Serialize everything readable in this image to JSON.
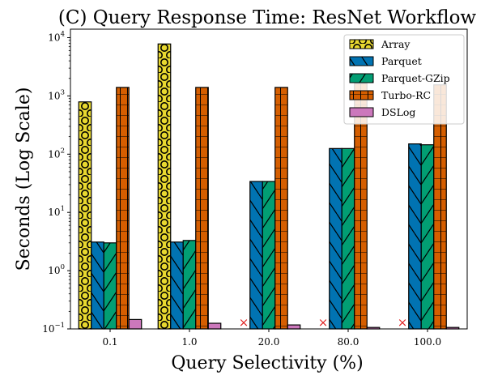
{
  "chart_data": {
    "type": "bar",
    "title": "(C) Query Response Time: ResNet Workflow",
    "xlabel": "Query Selectivity (%)",
    "ylabel": "Seconds (Log Scale)",
    "yscale": "log",
    "ylim": [
      0.1,
      14000
    ],
    "ytick_labels": [
      {
        "base": "10",
        "exp": "−1",
        "value": 0.1
      },
      {
        "base": "10",
        "exp": "0",
        "value": 1
      },
      {
        "base": "10",
        "exp": "1",
        "value": 10
      },
      {
        "base": "10",
        "exp": "2",
        "value": 100
      },
      {
        "base": "10",
        "exp": "3",
        "value": 1000
      },
      {
        "base": "10",
        "exp": "4",
        "value": 10000
      }
    ],
    "categories": [
      "0.1",
      "1.0",
      "20.0",
      "80.0",
      "100.0"
    ],
    "legend_position": "top-right",
    "missing_marker": "×",
    "series": [
      {
        "name": "Array",
        "color": "#e8d830",
        "hatch": "circles",
        "values": [
          790,
          7800,
          null,
          null,
          null
        ]
      },
      {
        "name": "Parquet",
        "color": "#0173b2",
        "hatch": "backslash",
        "values": [
          3.1,
          3.1,
          34,
          125,
          150
        ]
      },
      {
        "name": "Parquet-GZip",
        "color": "#029e73",
        "hatch": "slash",
        "values": [
          3.0,
          3.3,
          34,
          125,
          145
        ]
      },
      {
        "name": "Turbo-RC",
        "color": "#d55e00",
        "hatch": "grid",
        "values": [
          1400,
          1400,
          1400,
          1650,
          1550
        ]
      },
      {
        "name": "DSLog",
        "color": "#cc78bc",
        "hatch": "none",
        "values": [
          0.145,
          0.125,
          0.117,
          0.106,
          0.106
        ]
      }
    ]
  }
}
